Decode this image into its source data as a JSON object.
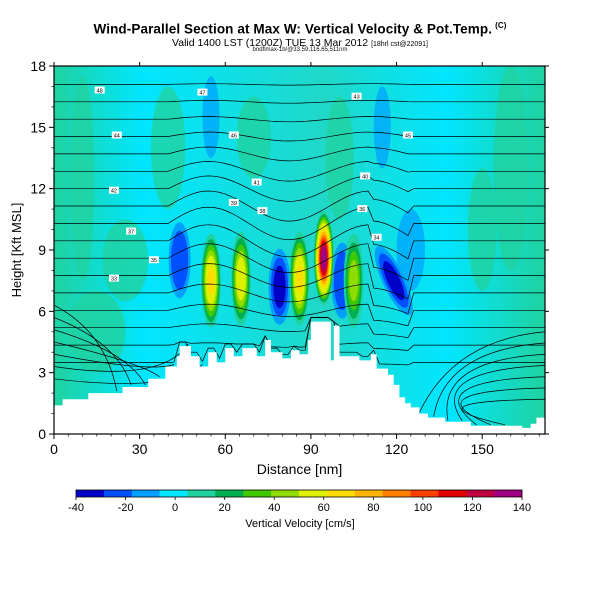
{
  "header": {
    "title": "Wind-Parallel Section at Max W: Vertical Velocity & Pot.Temp.",
    "title_mark": "(C)",
    "subtitle": "Valid 1400 LST (1200Z) TUE 13 Mar 2012",
    "subtitle_small": "[18hrl cst@22091]",
    "subline": "bndflmax-1b/@33.59,116.65,511nm"
  },
  "chart_data": {
    "type": "heatmap",
    "xlabel": "Distance [nm]",
    "ylabel": "Height [Kft MSL]",
    "xlim": [
      0,
      172
    ],
    "ylim": [
      0,
      18
    ],
    "x_ticks": [
      0,
      30,
      60,
      90,
      120,
      150
    ],
    "y_ticks": [
      0,
      3,
      6,
      9,
      12,
      15,
      18
    ],
    "terrain": [
      [
        0,
        1.4
      ],
      [
        3,
        1.4
      ],
      [
        3,
        1.7
      ],
      [
        12,
        1.7
      ],
      [
        12,
        2
      ],
      [
        24,
        2
      ],
      [
        24,
        2.3
      ],
      [
        33,
        2.3
      ],
      [
        33,
        2.7
      ],
      [
        39,
        2.7
      ],
      [
        39,
        3.3
      ],
      [
        43,
        3.3
      ],
      [
        43,
        3.8
      ],
      [
        44,
        3.8
      ],
      [
        44,
        4.3
      ],
      [
        48,
        4.3
      ],
      [
        48,
        3.8
      ],
      [
        51,
        3.8
      ],
      [
        51,
        3.3
      ],
      [
        54,
        3.3
      ],
      [
        54,
        4
      ],
      [
        57,
        4
      ],
      [
        57,
        3.5
      ],
      [
        60,
        3.5
      ],
      [
        60,
        4.2
      ],
      [
        63,
        4.2
      ],
      [
        63,
        3.8
      ],
      [
        66,
        3.8
      ],
      [
        66,
        4.2
      ],
      [
        71,
        4.2
      ],
      [
        71,
        3.8
      ],
      [
        74,
        3.8
      ],
      [
        74,
        4.6
      ],
      [
        76,
        4.6
      ],
      [
        76,
        4
      ],
      [
        80,
        4
      ],
      [
        80,
        3.7
      ],
      [
        83,
        3.7
      ],
      [
        83,
        4.1
      ],
      [
        86,
        4.1
      ],
      [
        86,
        3.9
      ],
      [
        89,
        3.9
      ],
      [
        89,
        4.6
      ],
      [
        90,
        4.6
      ],
      [
        90,
        5.5
      ],
      [
        97,
        5.5
      ],
      [
        97,
        3.6
      ],
      [
        98,
        3.6
      ],
      [
        98,
        5.3
      ],
      [
        100,
        5.3
      ],
      [
        100,
        3.8
      ],
      [
        107,
        3.8
      ],
      [
        107,
        3.6
      ],
      [
        111,
        3.6
      ],
      [
        111,
        3.9
      ],
      [
        113,
        3.9
      ],
      [
        113,
        3.2
      ],
      [
        117,
        3.2
      ],
      [
        117,
        2.9
      ],
      [
        119,
        2.9
      ],
      [
        119,
        2.4
      ],
      [
        121,
        2.4
      ],
      [
        121,
        1.8
      ],
      [
        123,
        1.8
      ],
      [
        123,
        1.5
      ],
      [
        125,
        1.5
      ],
      [
        125,
        1.3
      ],
      [
        128,
        1.3
      ],
      [
        128,
        1
      ],
      [
        131,
        1
      ],
      [
        131,
        0.8
      ],
      [
        137,
        0.8
      ],
      [
        137,
        0.6
      ],
      [
        146,
        0.6
      ],
      [
        146,
        0.4
      ],
      [
        164,
        0.4
      ],
      [
        164,
        0.3
      ],
      [
        167,
        0.3
      ],
      [
        167,
        0.5
      ],
      [
        169,
        0.5
      ],
      [
        169,
        0.8
      ],
      [
        172,
        0.8
      ]
    ],
    "updraft_cores": [
      {
        "x": 55,
        "y": 7.5,
        "w": 70
      },
      {
        "x": 65.5,
        "y": 7.6,
        "w": 60
      },
      {
        "x": 86,
        "y": 7.6,
        "w": 70
      },
      {
        "x": 94.5,
        "y": 8.6,
        "w": 140
      },
      {
        "x": 105,
        "y": 7.5,
        "w": 40
      }
    ],
    "downdraft_cores": [
      {
        "x": 79,
        "y": 7.2,
        "w": -40
      },
      {
        "x": 119,
        "y": 7.5,
        "w": -40
      },
      {
        "x": 101,
        "y": 7.5,
        "w": -20
      },
      {
        "x": 44,
        "y": 8.5,
        "w": -20
      }
    ],
    "colorbar": {
      "ticks": [
        -40,
        -20,
        0,
        20,
        40,
        60,
        80,
        100,
        120,
        140
      ],
      "colors": [
        "#0000c8",
        "#0050ff",
        "#00a0ff",
        "#00e6ff",
        "#20d2a0",
        "#00b050",
        "#40c800",
        "#90dc00",
        "#dcf000",
        "#ffdc00",
        "#ffb400",
        "#ff8000",
        "#ff4000",
        "#e00000",
        "#c00040",
        "#a00080"
      ],
      "label": "Vertical Velocity [cm/s]"
    },
    "contour_labels": [
      "48",
      "47",
      "43",
      "44",
      "46",
      "45",
      "42",
      "41",
      "40",
      "39",
      "38",
      "37",
      "36",
      "35",
      "34",
      "33"
    ]
  }
}
